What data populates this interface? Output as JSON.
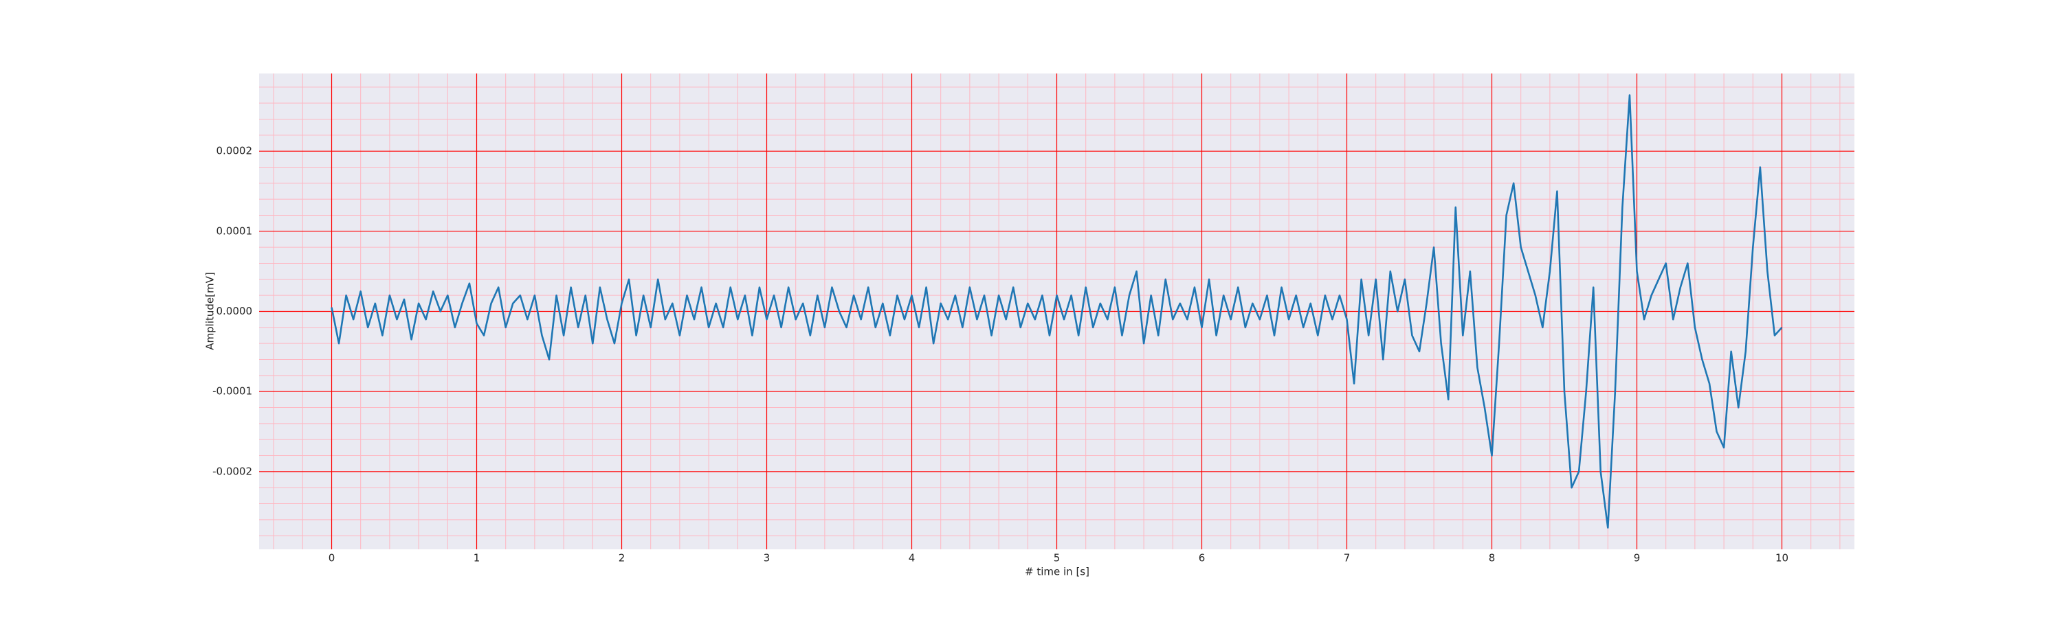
{
  "chart_data": {
    "type": "line",
    "xlabel": "# time in [s]",
    "ylabel": "Amplitude[mV]",
    "xlim": [
      -0.5,
      10.5
    ],
    "ylim": [
      -0.000297,
      0.000297
    ],
    "xticks": [
      0,
      1,
      2,
      3,
      4,
      5,
      6,
      7,
      8,
      9,
      10
    ],
    "yticks": [
      -0.0002,
      -0.0001,
      {
        "value": 0,
        "label": "0.0000"
      },
      0.0001,
      0.0002
    ],
    "minor_xticks": [
      -0.4,
      -0.2,
      0.2,
      0.4,
      0.6,
      0.8,
      1.2,
      1.4,
      1.6,
      1.8,
      2.2,
      2.4,
      2.6,
      2.8,
      3.2,
      3.4,
      3.6,
      3.8,
      4.2,
      4.4,
      4.6,
      4.8,
      5.2,
      5.4,
      5.6,
      5.8,
      6.2,
      6.4,
      6.6,
      6.8,
      7.2,
      7.4,
      7.6,
      7.8,
      8.2,
      8.4,
      8.6,
      8.8,
      9.2,
      9.4,
      9.6,
      9.8,
      10.2,
      10.4
    ],
    "minor_yticks": [
      -0.00028,
      -0.00026,
      -0.00024,
      -0.00022,
      -0.00018,
      -0.00016,
      -0.00014,
      -0.00012,
      -8e-05,
      -6e-05,
      -4e-05,
      -2e-05,
      2e-05,
      4e-05,
      6e-05,
      8e-05,
      0.00012,
      0.00014,
      0.00016,
      0.00018,
      0.00022,
      0.00024,
      0.00026,
      0.00028
    ],
    "grid": true,
    "grid_color": "#ff0000",
    "minor_grid_color": "#ffb6c1",
    "background": "#eaeaf2",
    "series": [
      {
        "color": "#1f77b4",
        "x": [
          0,
          0.05,
          0.1,
          0.15,
          0.2,
          0.25,
          0.3,
          0.35,
          0.4,
          0.45,
          0.5,
          0.55,
          0.6,
          0.65,
          0.7,
          0.75,
          0.8,
          0.85,
          0.9,
          0.95,
          1.0,
          1.05,
          1.1,
          1.15,
          1.2,
          1.25,
          1.3,
          1.35,
          1.4,
          1.45,
          1.5,
          1.55,
          1.6,
          1.65,
          1.7,
          1.75,
          1.8,
          1.85,
          1.9,
          1.95,
          2.0,
          2.05,
          2.1,
          2.15,
          2.2,
          2.25,
          2.3,
          2.35,
          2.4,
          2.45,
          2.5,
          2.55,
          2.6,
          2.65,
          2.7,
          2.75,
          2.8,
          2.85,
          2.9,
          2.95,
          3.0,
          3.05,
          3.1,
          3.15,
          3.2,
          3.25,
          3.3,
          3.35,
          3.4,
          3.45,
          3.5,
          3.55,
          3.6,
          3.65,
          3.7,
          3.75,
          3.8,
          3.85,
          3.9,
          3.95,
          4.0,
          4.05,
          4.1,
          4.15,
          4.2,
          4.25,
          4.3,
          4.35,
          4.4,
          4.45,
          4.5,
          4.55,
          4.6,
          4.65,
          4.7,
          4.75,
          4.8,
          4.85,
          4.9,
          4.95,
          5.0,
          5.05,
          5.1,
          5.15,
          5.2,
          5.25,
          5.3,
          5.35,
          5.4,
          5.45,
          5.5,
          5.55,
          5.6,
          5.65,
          5.7,
          5.75,
          5.8,
          5.85,
          5.9,
          5.95,
          6.0,
          6.05,
          6.1,
          6.15,
          6.2,
          6.25,
          6.3,
          6.35,
          6.4,
          6.45,
          6.5,
          6.55,
          6.6,
          6.65,
          6.7,
          6.75,
          6.8,
          6.85,
          6.9,
          6.95,
          7.0,
          7.05,
          7.1,
          7.15,
          7.2,
          7.25,
          7.3,
          7.35,
          7.4,
          7.45,
          7.5,
          7.55,
          7.6,
          7.65,
          7.7,
          7.75,
          7.8,
          7.85,
          7.9,
          7.95,
          8.0,
          8.05,
          8.1,
          8.15,
          8.2,
          8.25,
          8.3,
          8.35,
          8.4,
          8.45,
          8.5,
          8.55,
          8.6,
          8.65,
          8.7,
          8.75,
          8.8,
          8.85,
          8.9,
          8.95,
          9.0,
          9.05,
          9.1,
          9.15,
          9.2,
          9.25,
          9.3,
          9.35,
          9.4,
          9.45,
          9.5,
          9.55,
          9.6,
          9.65,
          9.7,
          9.75,
          9.8,
          9.85,
          9.9,
          9.95,
          10.0
        ],
        "values": [
          5e-06,
          -4e-05,
          2e-05,
          -1e-05,
          2.5e-05,
          -2e-05,
          1e-05,
          -3e-05,
          2e-05,
          -1e-05,
          1.5e-05,
          -3.5e-05,
          1e-05,
          -1e-05,
          2.5e-05,
          0,
          2e-05,
          -2e-05,
          1e-05,
          3.5e-05,
          -1.5e-05,
          -3e-05,
          1e-05,
          3e-05,
          -2e-05,
          1e-05,
          2e-05,
          -1e-05,
          2e-05,
          -3e-05,
          -6e-05,
          2e-05,
          -3e-05,
          3e-05,
          -2e-05,
          2e-05,
          -4e-05,
          3e-05,
          -1e-05,
          -4e-05,
          1e-05,
          4e-05,
          -3e-05,
          2e-05,
          -2e-05,
          4e-05,
          -1e-05,
          1e-05,
          -3e-05,
          2e-05,
          -1e-05,
          3e-05,
          -2e-05,
          1e-05,
          -2e-05,
          3e-05,
          -1e-05,
          2e-05,
          -3e-05,
          3e-05,
          -1e-05,
          2e-05,
          -2e-05,
          3e-05,
          -1e-05,
          1e-05,
          -3e-05,
          2e-05,
          -2e-05,
          3e-05,
          0,
          -2e-05,
          2e-05,
          -1e-05,
          3e-05,
          -2e-05,
          1e-05,
          -3e-05,
          2e-05,
          -1e-05,
          2e-05,
          -2e-05,
          3e-05,
          -4e-05,
          1e-05,
          -1e-05,
          2e-05,
          -2e-05,
          3e-05,
          -1e-05,
          2e-05,
          -3e-05,
          2e-05,
          -1e-05,
          3e-05,
          -2e-05,
          1e-05,
          -1e-05,
          2e-05,
          -3e-05,
          2e-05,
          -1e-05,
          2e-05,
          -3e-05,
          3e-05,
          -2e-05,
          1e-05,
          -1e-05,
          3e-05,
          -3e-05,
          2e-05,
          5e-05,
          -4e-05,
          2e-05,
          -3e-05,
          4e-05,
          -1e-05,
          1e-05,
          -1e-05,
          3e-05,
          -2e-05,
          4e-05,
          -3e-05,
          2e-05,
          -1e-05,
          3e-05,
          -2e-05,
          1e-05,
          -1e-05,
          2e-05,
          -3e-05,
          3e-05,
          -1e-05,
          2e-05,
          -2e-05,
          1e-05,
          -3e-05,
          2e-05,
          -1e-05,
          2e-05,
          -1e-05,
          -9e-05,
          4e-05,
          -3e-05,
          4e-05,
          -6e-05,
          5e-05,
          0,
          4e-05,
          -3e-05,
          -5e-05,
          1e-05,
          8e-05,
          -4e-05,
          -0.00011,
          0.00013,
          -3e-05,
          5e-05,
          -7e-05,
          -0.00012,
          -0.00018,
          -4e-05,
          0.00012,
          0.00016,
          8e-05,
          5e-05,
          2e-05,
          -2e-05,
          5e-05,
          0.00015,
          -0.0001,
          -0.00022,
          -0.0002,
          -0.0001,
          3e-05,
          -0.0002,
          -0.00027,
          -0.0001,
          0.00013,
          0.00027,
          5e-05,
          -1e-05,
          2e-05,
          4e-05,
          6e-05,
          -1e-05,
          3e-05,
          6e-05,
          -2e-05,
          -6e-05,
          -9e-05,
          -0.00015,
          -0.00017,
          -5e-05,
          -0.00012,
          -5e-05,
          8e-05,
          0.00018,
          5e-05,
          -3e-05,
          -2e-05
        ]
      }
    ]
  }
}
